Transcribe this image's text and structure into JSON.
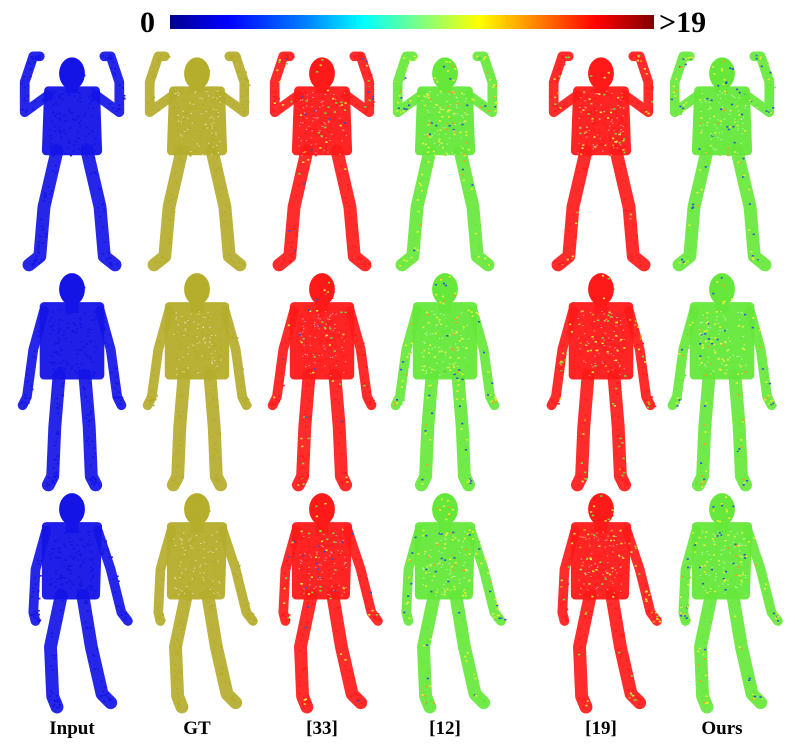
{
  "colorbar": {
    "min_label": "0",
    "max_label": ">19",
    "colors": [
      "#00008f",
      "#0000ff",
      "#0080ff",
      "#00ffff",
      "#80ff80",
      "#ffff00",
      "#ff8000",
      "#ff0000",
      "#800000"
    ]
  },
  "columns": [
    {
      "label": "Input",
      "scheme": "input"
    },
    {
      "label": "GT",
      "scheme": "gt"
    },
    {
      "label": "[33]",
      "scheme": "method33"
    },
    {
      "label": "[12]",
      "scheme": "method12"
    },
    {
      "label": "[19]",
      "scheme": "method19"
    },
    {
      "label": "Ours",
      "scheme": "ours"
    }
  ],
  "rows": [
    {
      "pose": "arms-raised"
    },
    {
      "pose": "standing"
    },
    {
      "pose": "walking"
    }
  ],
  "colors": {
    "input": "#1414e6",
    "gt": "#b5ad2c",
    "red": "#ff1a1a",
    "green": "#66e83a",
    "yellow": "#e8ef3c",
    "blue": "#2e4fd8",
    "orange": "#ff9a1a"
  }
}
